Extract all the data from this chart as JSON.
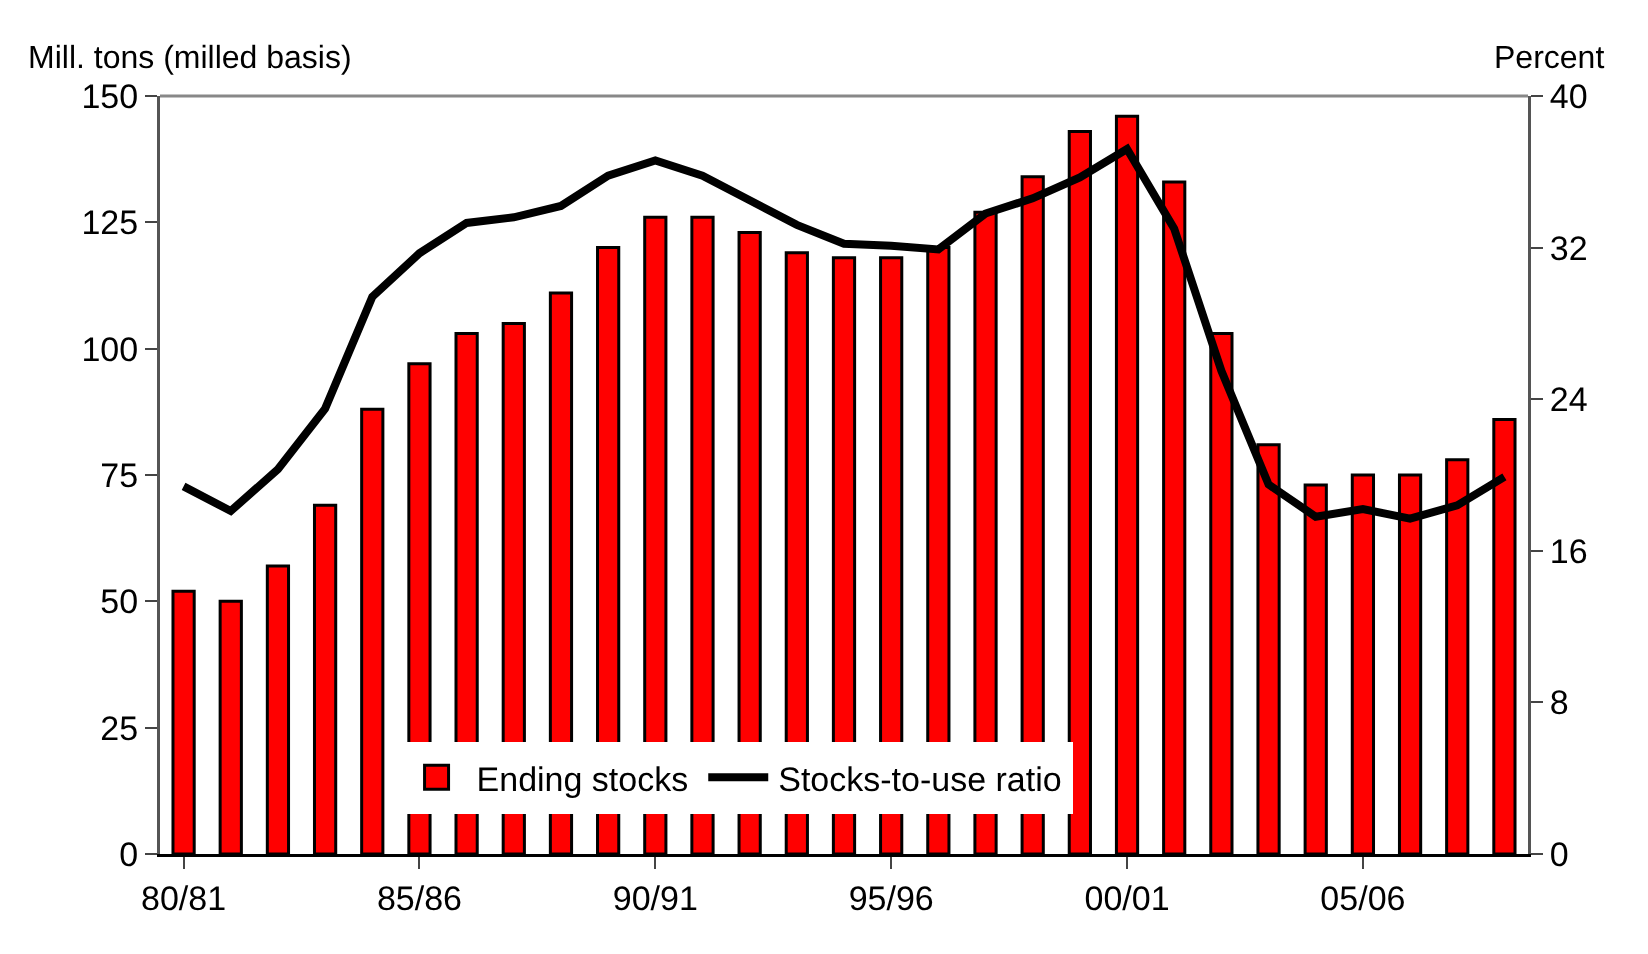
{
  "chart_data": {
    "type": "bar",
    "ylabel": "Mill. tons (milled basis)",
    "y2label": "Percent",
    "categories": [
      "80/81",
      null,
      null,
      null,
      null,
      "85/86",
      null,
      null,
      null,
      null,
      "90/91",
      null,
      null,
      null,
      null,
      "95/96",
      null,
      null,
      null,
      null,
      "00/01",
      null,
      null,
      null,
      null,
      "05/06",
      null,
      null,
      null
    ],
    "series": [
      {
        "name": "Ending stocks",
        "color": "#ff0000",
        "values": [
          52,
          50,
          57,
          69,
          88,
          97,
          103,
          105,
          111,
          120,
          126,
          126,
          123,
          119,
          118,
          118,
          120,
          127,
          134,
          143,
          146,
          133,
          103,
          81,
          73,
          75,
          75,
          78,
          86
        ]
      },
      {
        "name": "Stocks-to-use ratio",
        "type": "line",
        "axis": "y2",
        "color": "#000000",
        "values": [
          19.4,
          18.1,
          20.3,
          23.5,
          29.4,
          31.7,
          33.3,
          33.6,
          34.2,
          35.8,
          36.6,
          35.8,
          34.5,
          33.2,
          32.2,
          32.1,
          31.9,
          33.8,
          34.6,
          35.7,
          37.2,
          33.0,
          25.5,
          19.5,
          17.8,
          18.2,
          17.7,
          18.4,
          19.9
        ]
      }
    ],
    "ylim": [
      0,
      150
    ],
    "yticks": [
      0,
      25,
      50,
      75,
      100,
      125,
      150
    ],
    "y2lim": [
      0,
      40
    ],
    "y2ticks": [
      0,
      8,
      16,
      24,
      32,
      40
    ],
    "grid": false,
    "legend": "bottom",
    "marker": "none",
    "line_style": "solid"
  }
}
